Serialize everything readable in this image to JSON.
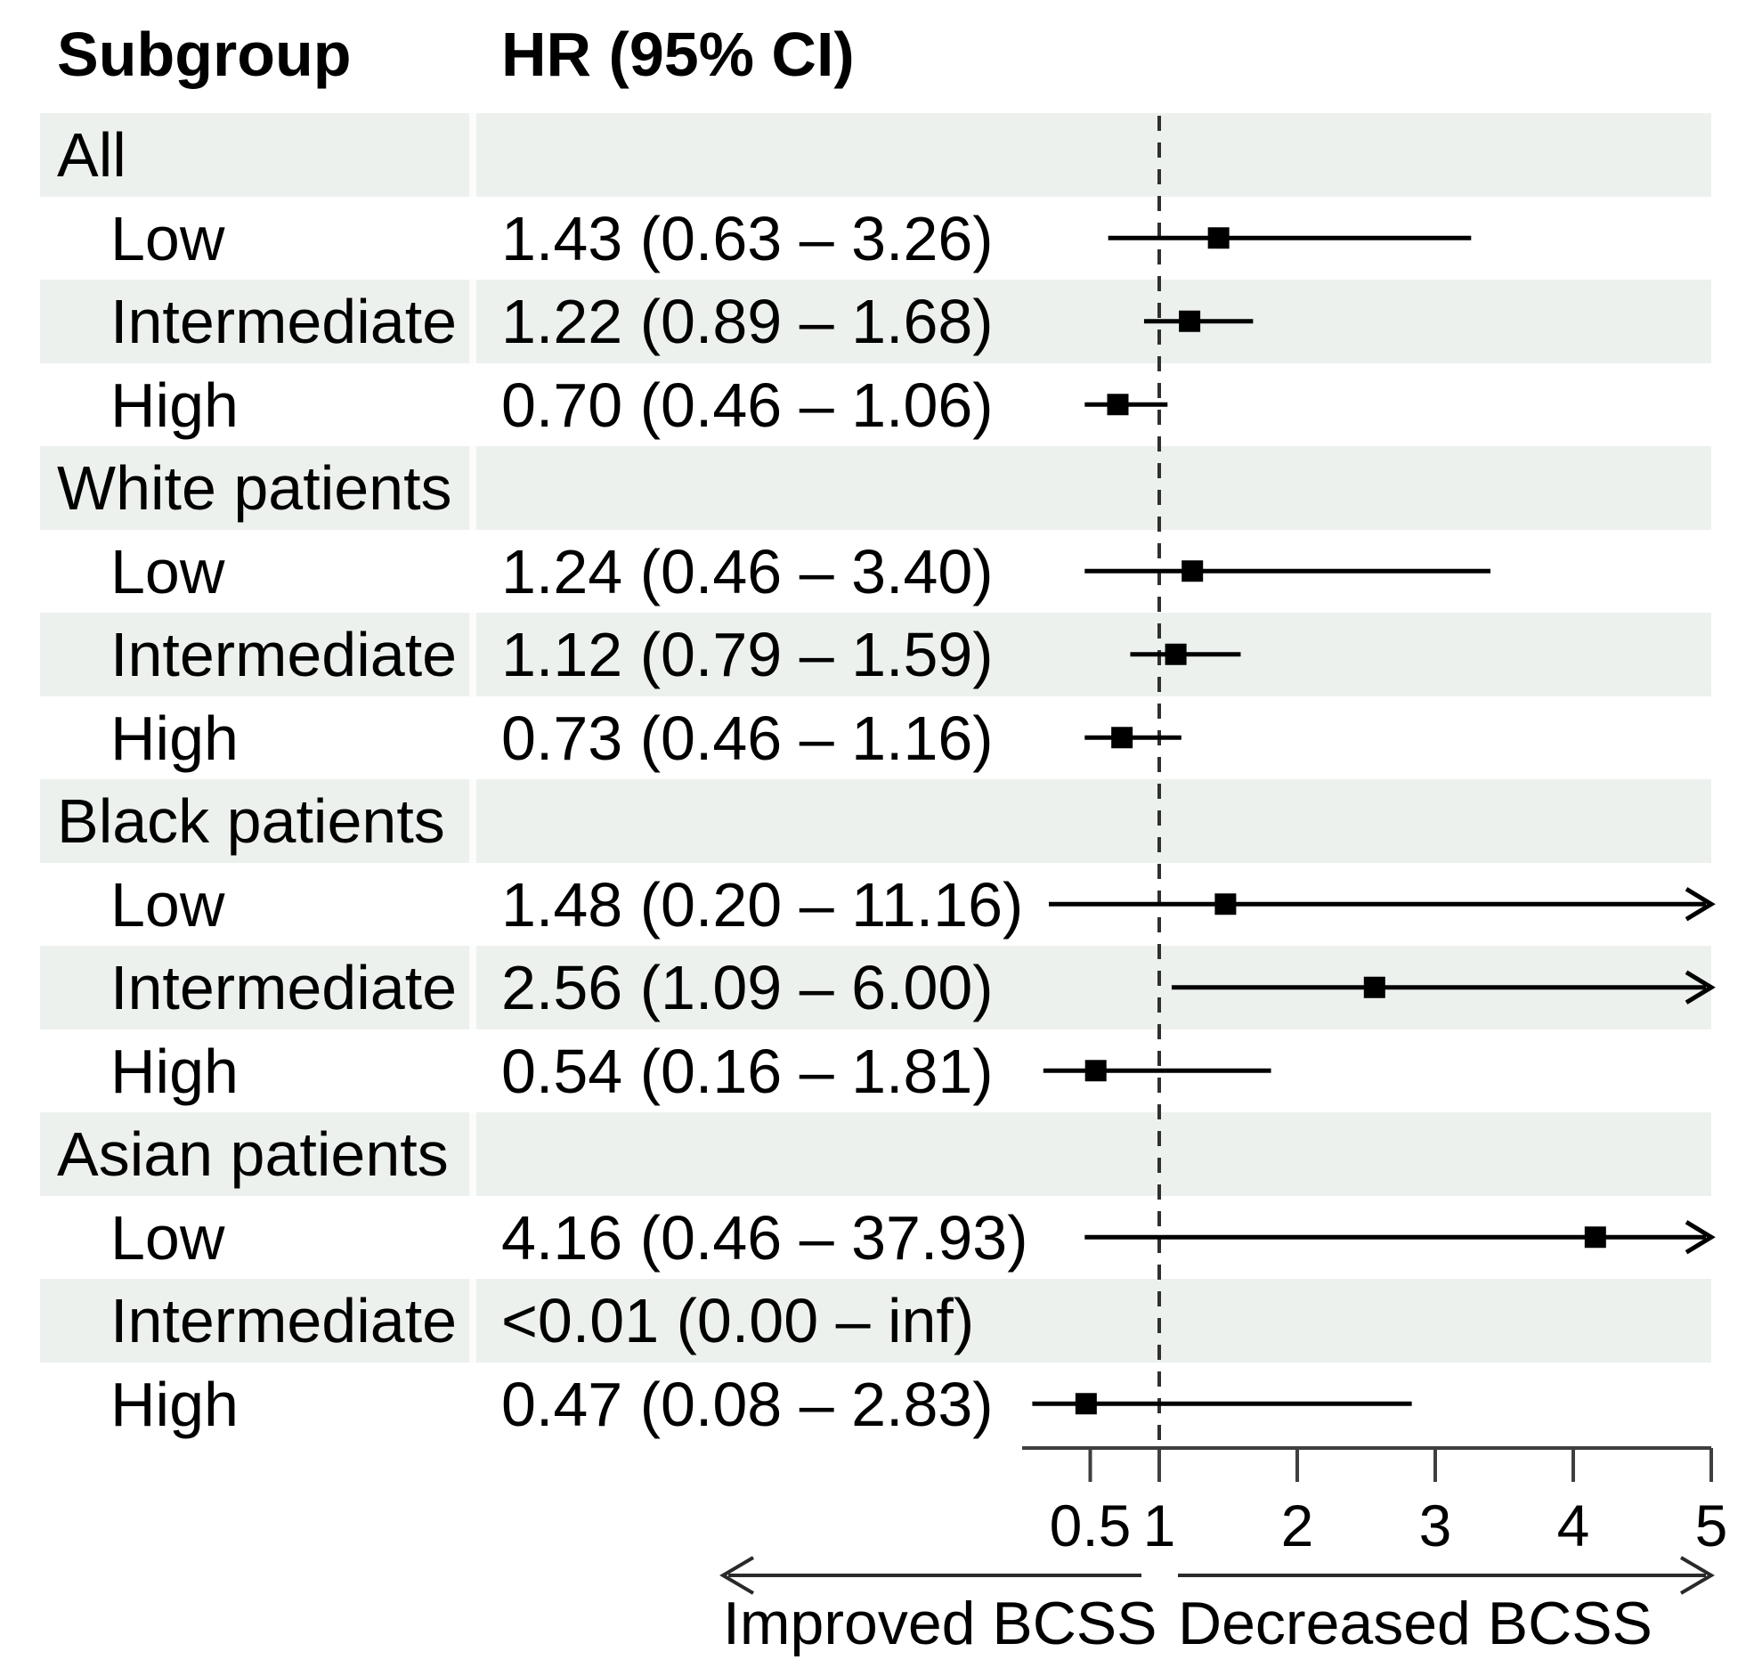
{
  "headers": {
    "subgroup": "Subgroup",
    "hr": "HR (95% CI)"
  },
  "footer": {
    "left_label": "Improved BCSS",
    "right_label": "Decreased BCSS"
  },
  "colors": {
    "band": "#edf1ee",
    "marker": "#000000",
    "axis": "#3f3f3f",
    "reference_line": "#2f2f2f",
    "direction_arrow": "#2a2a2a",
    "text": "#000000"
  },
  "chart_data": {
    "type": "forest",
    "title": "",
    "columns": [
      "Subgroup",
      "HR (95% CI)"
    ],
    "x_axis": {
      "scale": "linear",
      "min": 0,
      "max": 5,
      "tick_labels": [
        "0.5",
        "1",
        "2",
        "3",
        "4",
        "5"
      ],
      "tick_values": [
        0.5,
        1,
        2,
        3,
        4,
        5
      ],
      "reference_line": 1,
      "arrow_beyond": 5
    },
    "direction_labels": {
      "left": "Improved BCSS",
      "right": "Decreased BCSS"
    },
    "rows": [
      {
        "label": "All",
        "type": "group",
        "hr_text": "",
        "est": null,
        "lo": null,
        "hi": null
      },
      {
        "label": "Low",
        "type": "item",
        "hr_text": "1.43 (0.63 – 3.26)",
        "est": 1.43,
        "lo": 0.63,
        "hi": 3.26
      },
      {
        "label": "Intermediate",
        "type": "item",
        "hr_text": "1.22 (0.89 – 1.68)",
        "est": 1.22,
        "lo": 0.89,
        "hi": 1.68
      },
      {
        "label": "High",
        "type": "item",
        "hr_text": "0.70 (0.46 – 1.06)",
        "est": 0.7,
        "lo": 0.46,
        "hi": 1.06
      },
      {
        "label": "White patients",
        "type": "group",
        "hr_text": "",
        "est": null,
        "lo": null,
        "hi": null
      },
      {
        "label": "Low",
        "type": "item",
        "hr_text": "1.24 (0.46 – 3.40)",
        "est": 1.24,
        "lo": 0.46,
        "hi": 3.4
      },
      {
        "label": "Intermediate",
        "type": "item",
        "hr_text": "1.12 (0.79 – 1.59)",
        "est": 1.12,
        "lo": 0.79,
        "hi": 1.59
      },
      {
        "label": "High",
        "type": "item",
        "hr_text": "0.73 (0.46 – 1.16)",
        "est": 0.73,
        "lo": 0.46,
        "hi": 1.16
      },
      {
        "label": "Black patients",
        "type": "group",
        "hr_text": "",
        "est": null,
        "lo": null,
        "hi": null
      },
      {
        "label": "Low",
        "type": "item",
        "hr_text": "1.48 (0.20 – 11.16)",
        "est": 1.48,
        "lo": 0.2,
        "hi": 11.16
      },
      {
        "label": "Intermediate",
        "type": "item",
        "hr_text": "2.56 (1.09 – 6.00)",
        "est": 2.56,
        "lo": 1.09,
        "hi": 6.0
      },
      {
        "label": "High",
        "type": "item",
        "hr_text": "0.54 (0.16 – 1.81)",
        "est": 0.54,
        "lo": 0.16,
        "hi": 1.81
      },
      {
        "label": "Asian patients",
        "type": "group",
        "hr_text": "",
        "est": null,
        "lo": null,
        "hi": null
      },
      {
        "label": "Low",
        "type": "item",
        "hr_text": "4.16 (0.46 – 37.93)",
        "est": 4.16,
        "lo": 0.46,
        "hi": 37.93
      },
      {
        "label": "Intermediate",
        "type": "item",
        "hr_text": "<0.01 (0.00 – inf)",
        "est": null,
        "lo": null,
        "hi": null
      },
      {
        "label": "High",
        "type": "item",
        "hr_text": "0.47 (0.08 – 2.83)",
        "est": 0.47,
        "lo": 0.08,
        "hi": 2.83
      }
    ]
  }
}
